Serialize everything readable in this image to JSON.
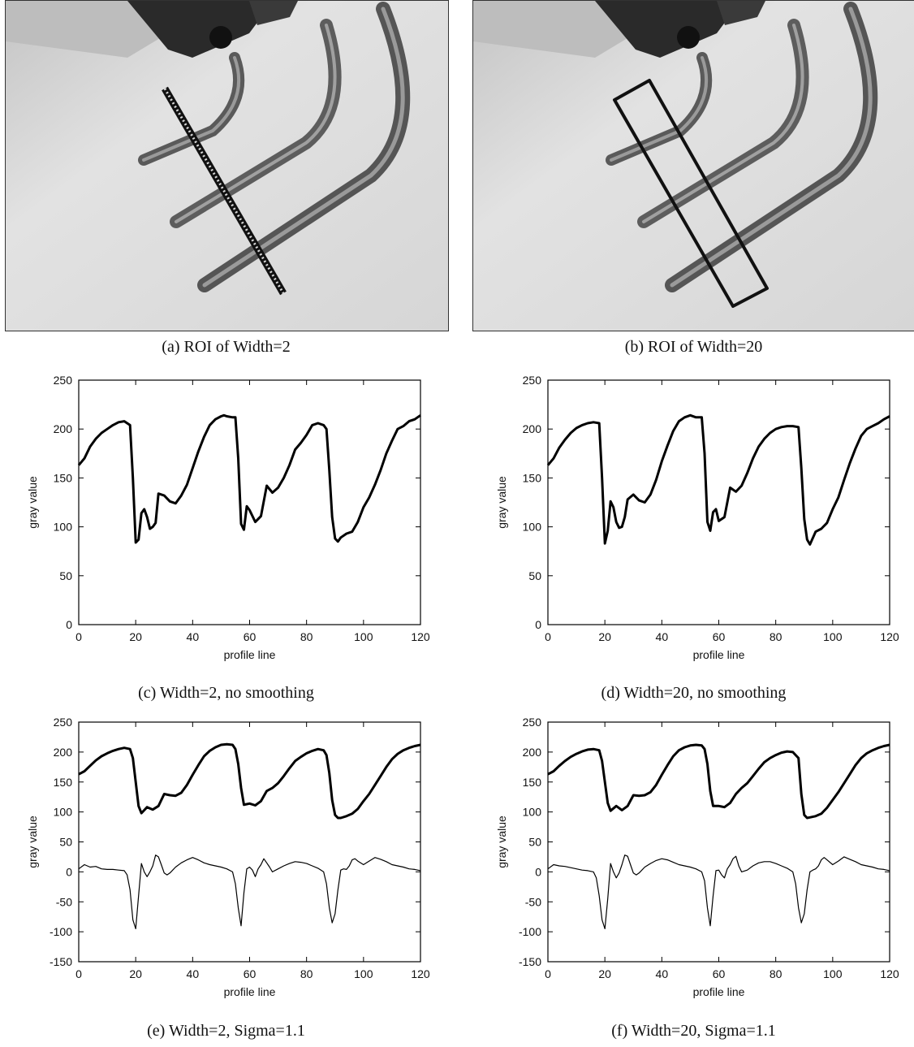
{
  "figure": {
    "captions": {
      "a": "(a) ROI of Width=2",
      "b": "(b) ROI of Width=20",
      "c": "(c) Width=2, no smoothing",
      "d": "(d) Width=20, no smoothing",
      "e": "(e) Width=2, Sigma=1.1",
      "f": "(f) Width=20, Sigma=1.1"
    }
  },
  "chart_data": [
    {
      "id": "c",
      "type": "line",
      "title": "",
      "xlabel": "profile line",
      "ylabel": "gray value",
      "xlim": [
        0,
        120
      ],
      "ylim": [
        0,
        250
      ],
      "xticks": [
        0,
        20,
        40,
        60,
        80,
        100,
        120
      ],
      "yticks": [
        0,
        50,
        100,
        150,
        200,
        250
      ],
      "series": [
        {
          "x": [
            0,
            2,
            4,
            6,
            8,
            10,
            12,
            14,
            16,
            18,
            19,
            20,
            21,
            22,
            23,
            24,
            25,
            26,
            27,
            28,
            30,
            32,
            34,
            36,
            38,
            40,
            42,
            44,
            46,
            48,
            50,
            51,
            52,
            54,
            55,
            56,
            57,
            58,
            59,
            60,
            62,
            64,
            66,
            68,
            70,
            72,
            74,
            76,
            78,
            80,
            82,
            84,
            86,
            87,
            88,
            89,
            90,
            91,
            92,
            94,
            96,
            98,
            100,
            102,
            104,
            106,
            108,
            110,
            112,
            114,
            116,
            118,
            120
          ],
          "y": [
            163,
            170,
            182,
            190,
            196,
            200,
            204,
            207,
            208,
            204,
            150,
            84,
            87,
            114,
            118,
            110,
            98,
            100,
            104,
            134,
            132,
            126,
            124,
            132,
            143,
            160,
            177,
            192,
            204,
            210,
            213,
            214,
            213,
            212,
            212,
            170,
            103,
            97,
            121,
            117,
            105,
            111,
            142,
            135,
            140,
            150,
            163,
            179,
            186,
            194,
            204,
            206,
            204,
            200,
            158,
            110,
            88,
            85,
            89,
            93,
            95,
            105,
            120,
            130,
            143,
            158,
            175,
            188,
            200,
            203,
            208,
            210,
            214
          ]
        }
      ]
    },
    {
      "id": "d",
      "type": "line",
      "title": "",
      "xlabel": "profile line",
      "ylabel": "gray value",
      "xlim": [
        0,
        120
      ],
      "ylim": [
        0,
        250
      ],
      "xticks": [
        0,
        20,
        40,
        60,
        80,
        100,
        120
      ],
      "yticks": [
        0,
        50,
        100,
        150,
        200,
        250
      ],
      "series": [
        {
          "x": [
            0,
            2,
            4,
            6,
            8,
            10,
            12,
            14,
            16,
            18,
            19,
            20,
            21,
            22,
            23,
            24,
            25,
            26,
            27,
            28,
            30,
            32,
            34,
            36,
            38,
            40,
            42,
            44,
            46,
            48,
            50,
            52,
            54,
            55,
            56,
            57,
            58,
            59,
            60,
            62,
            64,
            66,
            68,
            70,
            72,
            74,
            76,
            78,
            80,
            82,
            84,
            86,
            88,
            89,
            90,
            91,
            92,
            94,
            96,
            98,
            100,
            102,
            104,
            106,
            108,
            110,
            112,
            114,
            116,
            118,
            120
          ],
          "y": [
            163,
            170,
            181,
            189,
            196,
            201,
            204,
            206,
            207,
            206,
            150,
            83,
            96,
            126,
            120,
            105,
            99,
            100,
            110,
            128,
            133,
            127,
            125,
            133,
            148,
            167,
            183,
            198,
            208,
            212,
            214,
            212,
            212,
            175,
            105,
            96,
            115,
            118,
            106,
            110,
            140,
            136,
            142,
            155,
            170,
            182,
            190,
            196,
            200,
            202,
            203,
            203,
            202,
            160,
            108,
            87,
            82,
            95,
            98,
            104,
            118,
            130,
            148,
            165,
            180,
            193,
            200,
            203,
            206,
            210,
            213
          ]
        }
      ]
    },
    {
      "id": "e",
      "type": "line",
      "title": "",
      "xlabel": "profile line",
      "ylabel": "gray value",
      "xlim": [
        0,
        120
      ],
      "ylim": [
        -150,
        250
      ],
      "xticks": [
        0,
        20,
        40,
        60,
        80,
        100,
        120
      ],
      "yticks": [
        -150,
        -100,
        -50,
        0,
        50,
        100,
        150,
        200,
        250
      ],
      "series": [
        {
          "x": [
            0,
            2,
            4,
            6,
            8,
            10,
            12,
            14,
            16,
            18,
            19,
            20,
            21,
            22,
            24,
            26,
            28,
            30,
            32,
            34,
            36,
            38,
            40,
            42,
            44,
            46,
            48,
            50,
            52,
            54,
            55,
            56,
            57,
            58,
            59,
            60,
            62,
            64,
            66,
            68,
            70,
            72,
            74,
            76,
            78,
            80,
            82,
            84,
            86,
            87,
            88,
            89,
            90,
            91,
            92,
            94,
            96,
            98,
            100,
            102,
            104,
            106,
            108,
            110,
            112,
            114,
            116,
            118,
            120
          ],
          "y": [
            163,
            168,
            177,
            186,
            193,
            198,
            202,
            205,
            207,
            205,
            190,
            150,
            110,
            98,
            108,
            104,
            110,
            130,
            128,
            127,
            132,
            145,
            162,
            178,
            193,
            202,
            208,
            212,
            213,
            212,
            205,
            180,
            140,
            112,
            113,
            114,
            111,
            118,
            135,
            140,
            148,
            160,
            173,
            185,
            192,
            198,
            202,
            205,
            203,
            195,
            165,
            120,
            95,
            90,
            90,
            93,
            97,
            105,
            118,
            130,
            145,
            160,
            175,
            188,
            197,
            203,
            207,
            210,
            212
          ]
        },
        {
          "x": [
            0,
            2,
            4,
            6,
            8,
            10,
            12,
            14,
            16,
            17,
            18,
            19,
            20,
            21,
            22,
            23,
            24,
            25,
            26,
            27,
            28,
            29,
            30,
            31,
            32,
            34,
            36,
            38,
            40,
            42,
            44,
            46,
            48,
            50,
            52,
            54,
            55,
            56,
            57,
            58,
            59,
            60,
            61,
            62,
            63,
            64,
            65,
            66,
            67,
            68,
            70,
            72,
            74,
            76,
            78,
            80,
            82,
            84,
            86,
            87,
            88,
            89,
            90,
            91,
            92,
            93,
            94,
            95,
            96,
            97,
            98,
            100,
            102,
            104,
            106,
            108,
            110,
            112,
            114,
            116,
            118,
            120
          ],
          "y": [
            5,
            12,
            8,
            9,
            5,
            4,
            4,
            3,
            2,
            -5,
            -30,
            -80,
            -95,
            -40,
            14,
            0,
            -8,
            0,
            10,
            28,
            25,
            12,
            -2,
            -5,
            -2,
            8,
            15,
            20,
            24,
            20,
            15,
            12,
            10,
            8,
            5,
            0,
            -20,
            -60,
            -90,
            -35,
            5,
            8,
            3,
            -8,
            5,
            12,
            22,
            15,
            8,
            0,
            5,
            10,
            14,
            17,
            16,
            14,
            10,
            6,
            0,
            -20,
            -60,
            -85,
            -70,
            -30,
            3,
            5,
            4,
            10,
            20,
            22,
            18,
            12,
            18,
            24,
            21,
            17,
            12,
            10,
            8,
            5,
            4,
            2
          ]
        }
      ]
    },
    {
      "id": "f",
      "type": "line",
      "title": "",
      "xlabel": "profile line",
      "ylabel": "gray value",
      "xlim": [
        0,
        120
      ],
      "ylim": [
        -150,
        250
      ],
      "xticks": [
        0,
        20,
        40,
        60,
        80,
        100,
        120
      ],
      "yticks": [
        -150,
        -100,
        -50,
        0,
        50,
        100,
        150,
        200,
        250
      ],
      "series": [
        {
          "x": [
            0,
            2,
            4,
            6,
            8,
            10,
            12,
            14,
            16,
            18,
            19,
            20,
            21,
            22,
            24,
            26,
            28,
            30,
            32,
            34,
            36,
            38,
            40,
            42,
            44,
            46,
            48,
            50,
            52,
            54,
            55,
            56,
            57,
            58,
            59,
            60,
            62,
            64,
            66,
            68,
            70,
            72,
            74,
            76,
            78,
            80,
            82,
            84,
            86,
            88,
            89,
            90,
            91,
            92,
            94,
            96,
            98,
            100,
            102,
            104,
            106,
            108,
            110,
            112,
            114,
            116,
            118,
            120
          ],
          "y": [
            163,
            168,
            177,
            185,
            192,
            197,
            201,
            204,
            205,
            203,
            185,
            150,
            115,
            102,
            110,
            103,
            110,
            128,
            127,
            128,
            133,
            145,
            162,
            178,
            193,
            203,
            208,
            211,
            212,
            211,
            205,
            180,
            135,
            110,
            110,
            110,
            108,
            115,
            130,
            140,
            148,
            160,
            172,
            183,
            190,
            195,
            199,
            201,
            200,
            190,
            130,
            95,
            90,
            91,
            93,
            97,
            107,
            120,
            133,
            148,
            163,
            178,
            190,
            198,
            203,
            207,
            210,
            212
          ]
        },
        {
          "x": [
            0,
            2,
            4,
            6,
            8,
            10,
            12,
            14,
            16,
            17,
            18,
            19,
            20,
            21,
            22,
            23,
            24,
            25,
            26,
            27,
            28,
            29,
            30,
            31,
            32,
            34,
            36,
            38,
            40,
            42,
            44,
            46,
            48,
            50,
            52,
            54,
            55,
            56,
            57,
            58,
            59,
            60,
            61,
            62,
            63,
            64,
            65,
            66,
            67,
            68,
            70,
            72,
            74,
            76,
            78,
            80,
            82,
            84,
            86,
            87,
            88,
            89,
            90,
            91,
            92,
            93,
            94,
            95,
            96,
            97,
            98,
            100,
            102,
            104,
            106,
            108,
            110,
            112,
            114,
            116,
            118,
            120
          ],
          "y": [
            5,
            12,
            10,
            9,
            7,
            5,
            3,
            2,
            0,
            -10,
            -40,
            -80,
            -95,
            -45,
            14,
            0,
            -10,
            -2,
            12,
            28,
            26,
            12,
            -2,
            -5,
            -2,
            8,
            14,
            19,
            22,
            20,
            16,
            12,
            10,
            8,
            5,
            0,
            -15,
            -60,
            -90,
            -40,
            2,
            3,
            -5,
            -10,
            5,
            12,
            22,
            26,
            10,
            0,
            3,
            10,
            15,
            17,
            17,
            14,
            10,
            6,
            0,
            -20,
            -60,
            -85,
            -70,
            -30,
            0,
            3,
            5,
            10,
            20,
            24,
            20,
            12,
            18,
            25,
            21,
            17,
            12,
            10,
            8,
            5,
            4,
            2
          ]
        }
      ]
    }
  ]
}
